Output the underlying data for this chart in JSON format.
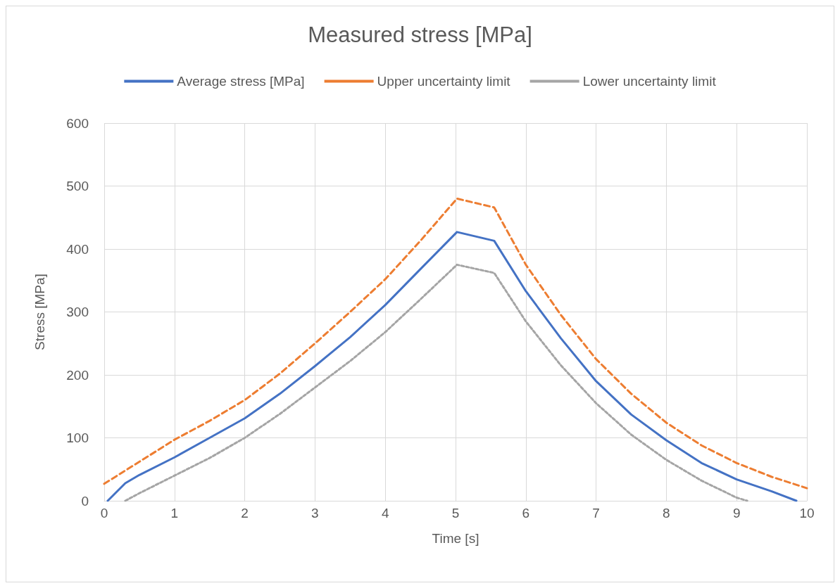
{
  "chart_data": {
    "type": "line",
    "title": "Measured stress [MPa]",
    "xlabel": "Time [s]",
    "ylabel": "Stress [MPa]",
    "xlim": [
      0,
      10
    ],
    "xticks": [
      0,
      1,
      2,
      3,
      4,
      5,
      6,
      7,
      8,
      9,
      10
    ],
    "ylim": [
      0,
      600
    ],
    "yticks": [
      0,
      100,
      200,
      300,
      400,
      500,
      600
    ],
    "grid": true,
    "legend": "top",
    "marker": "none",
    "series": [
      {
        "name": "Average stress [MPa]",
        "color": "#4472c4",
        "line_style": "solid",
        "x": [
          0.05,
          0.3,
          0.5,
          1,
          1.5,
          2,
          2.5,
          3,
          3.5,
          4,
          4.5,
          5.02,
          5.55,
          6,
          6.5,
          7,
          7.5,
          8,
          8.5,
          9,
          9.5,
          9.85
        ],
        "values": [
          0,
          28,
          41,
          69,
          100,
          131,
          170,
          214,
          260,
          311,
          368,
          427,
          413,
          333,
          258,
          190,
          137,
          96,
          60,
          34,
          15,
          0
        ]
      },
      {
        "name": "Upper uncertainty limit",
        "color": "#ed7d31",
        "line_style": "dashed",
        "x": [
          0,
          0.5,
          1,
          1.5,
          2,
          2.5,
          3,
          3.5,
          4,
          4.5,
          5.02,
          5.55,
          6,
          6.5,
          7,
          7.5,
          8,
          8.5,
          9,
          9.5,
          10
        ],
        "values": [
          27,
          62,
          97,
          127,
          160,
          202,
          250,
          300,
          352,
          413,
          480,
          466,
          375,
          295,
          225,
          170,
          124,
          88,
          60,
          38,
          20
        ]
      },
      {
        "name": "Lower uncertainty limit",
        "color": "#a5a5a5",
        "line_style": "dotted",
        "x": [
          0.3,
          0.5,
          1,
          1.5,
          2,
          2.5,
          3,
          3.5,
          4,
          4.5,
          5.02,
          5.55,
          6,
          6.5,
          7,
          7.5,
          8,
          8.5,
          9,
          9.15
        ],
        "values": [
          0,
          12,
          40,
          68,
          100,
          138,
          180,
          222,
          268,
          320,
          375,
          362,
          285,
          215,
          155,
          105,
          65,
          32,
          5,
          0
        ]
      }
    ]
  }
}
